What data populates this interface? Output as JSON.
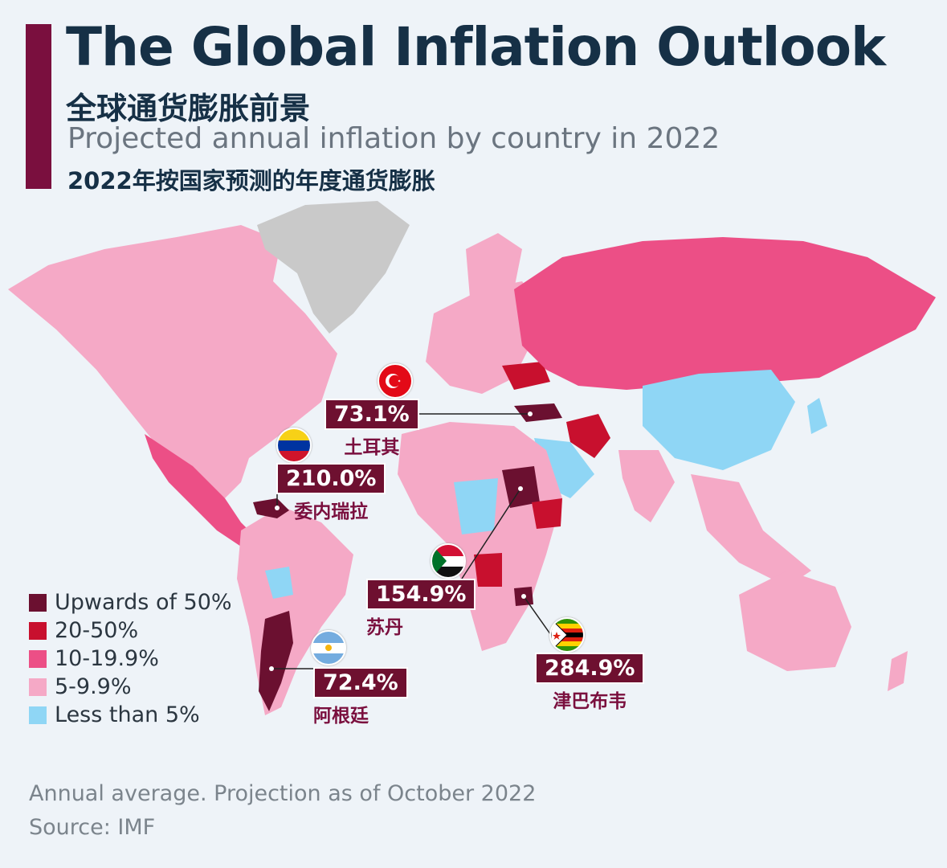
{
  "title": "The Global Inflation Outlook",
  "title_cn": "全球通货膨胀前景",
  "subtitle": "Projected annual inflation by country in 2022",
  "subtitle_cn": "2022年按国家预测的年度通货膨胀",
  "colors": {
    "accent": "#7a0f3e",
    "upwards_50": "#6b1030",
    "from_20_to_50": "#c8102e",
    "from_10_to_19_9": "#ec4f86",
    "from_5_to_9_9": "#f5a9c6",
    "less_than_5": "#8fd6f5",
    "no_data": "#c9c9c9"
  },
  "legend": [
    {
      "label": "Upwards of 50%",
      "color": "#6b1030"
    },
    {
      "label": "20-50%",
      "color": "#c8102e"
    },
    {
      "label": "10-19.9%",
      "color": "#ec4f86"
    },
    {
      "label": "5-9.9%",
      "color": "#f5a9c6"
    },
    {
      "label": "Less than 5%",
      "color": "#8fd6f5"
    }
  ],
  "callouts": {
    "turkey": {
      "value": "73.1%",
      "name": "土耳其",
      "flag": "turkey-flag-icon"
    },
    "venezuela": {
      "value": "210.0%",
      "name": "委内瑞拉",
      "flag": "venezuela-flag-icon"
    },
    "sudan": {
      "value": "154.9%",
      "name": "苏丹",
      "flag": "sudan-flag-icon"
    },
    "argentina": {
      "value": "72.4%",
      "name": "阿根廷",
      "flag": "argentina-flag-icon"
    },
    "zimbabwe": {
      "value": "284.9%",
      "name": "津巴布韦",
      "flag": "zimbabwe-flag-icon"
    }
  },
  "footnote": "Annual average. Projection as of October 2022",
  "source": "Source: IMF"
}
